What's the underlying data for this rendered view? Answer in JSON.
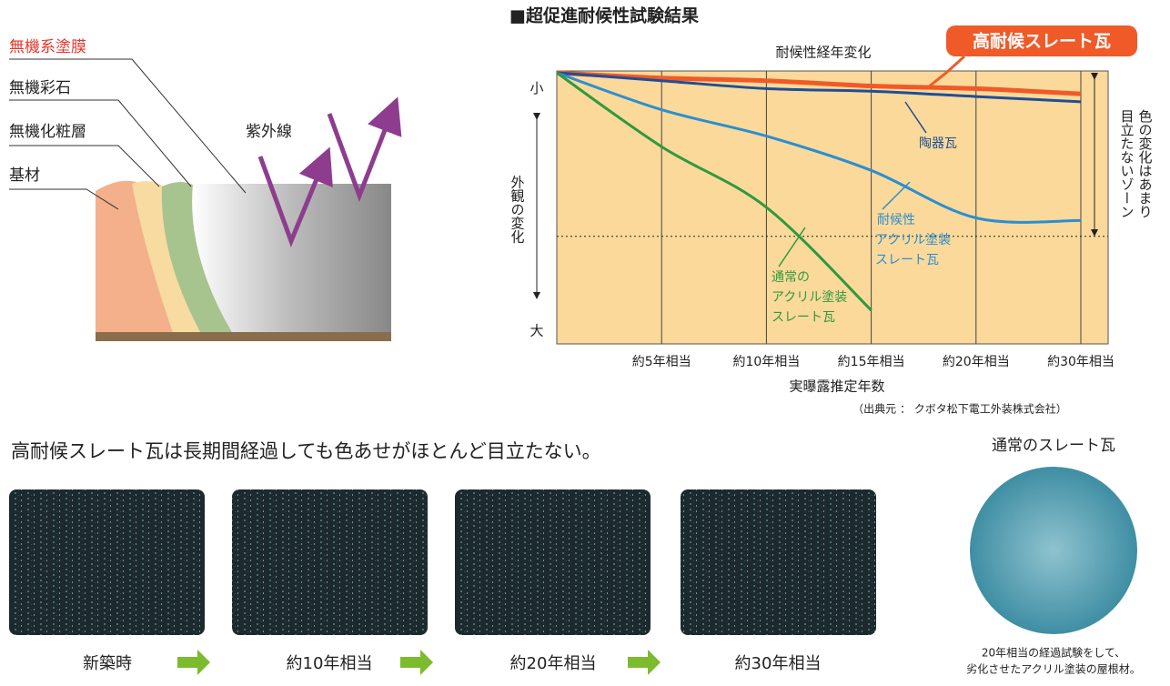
{
  "diagram": {
    "layers": [
      "無機系塗膜",
      "無機彩石",
      "無機化粧層",
      "基材"
    ],
    "uv": "紫外線"
  },
  "chart_data": {
    "type": "line",
    "title": "■超促進耐候性試験結果",
    "subtitle": "耐候性経年変化",
    "y_label": "外観の変化",
    "x_label": "実曝露推定年数",
    "source": "（出典元 ： クボタ松下電工外装株式会社）",
    "zone_label": [
      "色の変化はあまり",
      "目立たないゾーン"
    ],
    "categories": [
      null,
      "約5年相当",
      "約10年相当",
      "約15年相当",
      "約20年相当",
      "約30年相当"
    ],
    "ylim": [
      100,
      0
    ],
    "yticks": [
      {
        "value": 6,
        "label": "小"
      },
      {
        "value": 98,
        "label": "大"
      }
    ],
    "threshold": 62,
    "series": [
      {
        "name": "高耐候スレート瓦",
        "color": "#f05a28",
        "values": [
          0,
          2,
          3,
          5,
          6,
          8
        ]
      },
      {
        "name": "陶器瓦",
        "color": "#1f4e96",
        "values": [
          0,
          3,
          6,
          7,
          9,
          11
        ]
      },
      {
        "name": "耐候性\nアクリル塗装\nスレート瓦",
        "color": "#2a8fd0",
        "values": [
          0,
          14,
          24,
          37,
          55,
          56
        ]
      },
      {
        "name": "通常の\nアクリル塗装\nスレート瓦",
        "color": "#2e9a3c",
        "values": [
          0,
          28,
          51,
          90,
          null,
          null
        ]
      }
    ]
  },
  "comparison": {
    "headline": "高耐候スレート瓦は長期間経過しても色あせがほとんど目立たない。",
    "stages": [
      "新築時",
      "約10年相当",
      "約20年相当",
      "約30年相当"
    ],
    "reference_title": "通常のスレート瓦",
    "reference_caption": [
      "20年相当の経過試験をして、",
      "劣化させたアクリル塗装の屋根材。"
    ]
  }
}
